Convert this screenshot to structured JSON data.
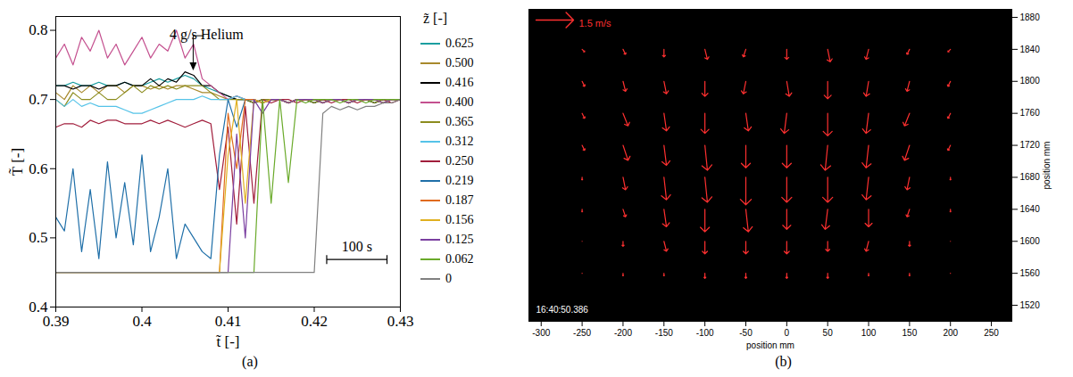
{
  "chart_data": [
    {
      "type": "line",
      "caption": "(a)",
      "x_label": "t̃ [-]",
      "y_label": "T̃ [-]",
      "legend_title": "z̃ [-]",
      "legend": "right",
      "xlim": [
        0.39,
        0.43
      ],
      "xticks": [
        0.39,
        0.4,
        0.41,
        0.42,
        0.43
      ],
      "ylim": [
        0.4,
        0.82
      ],
      "yticks": [
        0.4,
        0.5,
        0.6,
        0.7,
        0.8
      ],
      "x": [
        0.39,
        0.391,
        0.392,
        0.393,
        0.394,
        0.395,
        0.396,
        0.397,
        0.398,
        0.399,
        0.4,
        0.401,
        0.402,
        0.403,
        0.404,
        0.405,
        0.406,
        0.407,
        0.408,
        0.409,
        0.41,
        0.411,
        0.412,
        0.413,
        0.414,
        0.415,
        0.416,
        0.417,
        0.418,
        0.419,
        0.42,
        0.421,
        0.422,
        0.423,
        0.424,
        0.425,
        0.426,
        0.427,
        0.428,
        0.429,
        0.43
      ],
      "series": [
        {
          "name": "0.625",
          "color": "#1b9ea0",
          "values": [
            0.72,
            0.72,
            0.725,
            0.72,
            0.72,
            0.725,
            0.72,
            0.72,
            0.725,
            0.72,
            0.72,
            0.725,
            0.73,
            0.725,
            0.73,
            0.735,
            0.73,
            0.72,
            0.715,
            0.71,
            0.705,
            0.7,
            0.7,
            0.695,
            0.7,
            0.7,
            0.7,
            0.695,
            0.7,
            0.7,
            0.695,
            0.7,
            0.7,
            0.7,
            0.695,
            0.7,
            0.7,
            0.695,
            0.7,
            0.7,
            0.7
          ]
        },
        {
          "name": "0.500",
          "color": "#a8892c",
          "values": [
            0.71,
            0.7,
            0.72,
            0.71,
            0.72,
            0.71,
            0.72,
            0.72,
            0.71,
            0.72,
            0.72,
            0.715,
            0.72,
            0.715,
            0.72,
            0.72,
            0.715,
            0.71,
            0.71,
            0.705,
            0.7,
            0.705,
            0.7,
            0.7,
            0.695,
            0.7,
            0.7,
            0.695,
            0.7,
            0.7,
            0.7,
            0.695,
            0.7,
            0.7,
            0.695,
            0.7,
            0.7,
            0.7,
            0.695,
            0.7,
            0.7
          ]
        },
        {
          "name": "0.416",
          "color": "#000000",
          "values": [
            0.72,
            0.72,
            0.715,
            0.72,
            0.72,
            0.715,
            0.72,
            0.72,
            0.725,
            0.72,
            0.72,
            0.73,
            0.72,
            0.73,
            0.725,
            0.74,
            0.735,
            0.72,
            0.72,
            0.71,
            0.705,
            0.7,
            0.7,
            0.695,
            0.7,
            0.7,
            0.7,
            0.695,
            0.7,
            0.7,
            0.695,
            0.7,
            0.7,
            0.7,
            0.695,
            0.7,
            0.7,
            0.695,
            0.7,
            0.7,
            0.7
          ]
        },
        {
          "name": "0.400",
          "color": "#c4508f",
          "values": [
            0.76,
            0.78,
            0.75,
            0.79,
            0.77,
            0.8,
            0.76,
            0.78,
            0.75,
            0.77,
            0.79,
            0.76,
            0.78,
            0.77,
            0.8,
            0.76,
            0.78,
            0.73,
            0.72,
            0.71,
            0.7,
            0.705,
            0.7,
            0.7,
            0.695,
            0.7,
            0.7,
            0.695,
            0.7,
            0.7,
            0.7,
            0.695,
            0.7,
            0.7,
            0.695,
            0.7,
            0.7,
            0.7,
            0.695,
            0.7,
            0.7
          ]
        },
        {
          "name": "0.365",
          "color": "#8c8c1e",
          "values": [
            0.7,
            0.69,
            0.71,
            0.7,
            0.7,
            0.71,
            0.7,
            0.7,
            0.71,
            0.72,
            0.71,
            0.72,
            0.715,
            0.72,
            0.715,
            0.72,
            0.72,
            0.72,
            0.71,
            0.7,
            0.7,
            0.7,
            0.7,
            0.695,
            0.7,
            0.7,
            0.7,
            0.695,
            0.7,
            0.7,
            0.695,
            0.7,
            0.7,
            0.7,
            0.695,
            0.7,
            0.7,
            0.695,
            0.7,
            0.7,
            0.7
          ]
        },
        {
          "name": "0.312",
          "color": "#55c3e8",
          "values": [
            0.7,
            0.69,
            0.7,
            0.69,
            0.695,
            0.69,
            0.69,
            0.69,
            0.685,
            0.68,
            0.68,
            0.685,
            0.69,
            0.695,
            0.7,
            0.7,
            0.7,
            0.705,
            0.7,
            0.7,
            0.7,
            0.705,
            0.7,
            0.7,
            0.695,
            0.7,
            0.7,
            0.695,
            0.7,
            0.7,
            0.7,
            0.695,
            0.7,
            0.7,
            0.695,
            0.7,
            0.7,
            0.7,
            0.695,
            0.7,
            0.7
          ]
        },
        {
          "name": "0.250",
          "color": "#a11e3c",
          "values": [
            0.66,
            0.665,
            0.665,
            0.66,
            0.67,
            0.665,
            0.67,
            0.67,
            0.665,
            0.665,
            0.665,
            0.67,
            0.665,
            0.67,
            0.665,
            0.66,
            0.665,
            0.67,
            0.665,
            0.57,
            0.66,
            0.52,
            0.69,
            0.55,
            0.7,
            0.695,
            0.7,
            0.7,
            0.695,
            0.7,
            0.7,
            0.7,
            0.695,
            0.7,
            0.7,
            0.695,
            0.7,
            0.7,
            0.7,
            0.695,
            0.7
          ]
        },
        {
          "name": "0.219",
          "color": "#1f6fa8",
          "values": [
            0.53,
            0.51,
            0.6,
            0.48,
            0.57,
            0.47,
            0.61,
            0.5,
            0.58,
            0.49,
            0.62,
            0.48,
            0.53,
            0.6,
            0.47,
            0.52,
            0.5,
            0.48,
            0.47,
            0.62,
            0.7,
            0.66,
            0.7,
            0.7,
            0.695,
            0.7,
            0.7,
            0.695,
            0.7,
            0.7,
            0.7,
            0.695,
            0.7,
            0.7,
            0.695,
            0.7,
            0.7,
            0.7,
            0.695,
            0.7,
            0.7
          ]
        },
        {
          "name": "0.187",
          "color": "#e06a1e",
          "values": [
            0.45,
            0.45,
            0.45,
            0.45,
            0.45,
            0.45,
            0.45,
            0.45,
            0.45,
            0.45,
            0.45,
            0.45,
            0.45,
            0.45,
            0.45,
            0.45,
            0.45,
            0.45,
            0.45,
            0.45,
            0.68,
            0.6,
            0.7,
            0.7,
            0.695,
            0.7,
            0.7,
            0.695,
            0.7,
            0.7,
            0.7,
            0.695,
            0.7,
            0.7,
            0.695,
            0.7,
            0.7,
            0.7,
            0.695,
            0.7,
            0.7
          ]
        },
        {
          "name": "0.156",
          "color": "#e0b020",
          "values": [
            0.45,
            0.45,
            0.45,
            0.45,
            0.45,
            0.45,
            0.45,
            0.45,
            0.45,
            0.45,
            0.45,
            0.45,
            0.45,
            0.45,
            0.45,
            0.45,
            0.45,
            0.45,
            0.45,
            0.45,
            0.62,
            0.7,
            0.55,
            0.7,
            0.695,
            0.7,
            0.7,
            0.695,
            0.7,
            0.7,
            0.7,
            0.695,
            0.7,
            0.7,
            0.695,
            0.7,
            0.7,
            0.7,
            0.695,
            0.7,
            0.7
          ]
        },
        {
          "name": "0.125",
          "color": "#7a3fa0",
          "values": [
            0.45,
            0.45,
            0.45,
            0.45,
            0.45,
            0.45,
            0.45,
            0.45,
            0.45,
            0.45,
            0.45,
            0.45,
            0.45,
            0.45,
            0.45,
            0.45,
            0.45,
            0.45,
            0.45,
            0.45,
            0.45,
            0.65,
            0.5,
            0.7,
            0.68,
            0.7,
            0.7,
            0.695,
            0.7,
            0.7,
            0.7,
            0.695,
            0.7,
            0.7,
            0.695,
            0.7,
            0.7,
            0.7,
            0.695,
            0.7,
            0.7
          ]
        },
        {
          "name": "0.062",
          "color": "#6aaa2a",
          "values": [
            0.45,
            0.45,
            0.45,
            0.45,
            0.45,
            0.45,
            0.45,
            0.45,
            0.45,
            0.45,
            0.45,
            0.45,
            0.45,
            0.45,
            0.45,
            0.45,
            0.45,
            0.45,
            0.45,
            0.45,
            0.45,
            0.45,
            0.45,
            0.45,
            0.7,
            0.55,
            0.7,
            0.58,
            0.7,
            0.695,
            0.7,
            0.7,
            0.7,
            0.695,
            0.7,
            0.7,
            0.695,
            0.7,
            0.7,
            0.7,
            0.7
          ]
        },
        {
          "name": "0",
          "color": "#808080",
          "values": [
            0.45,
            0.45,
            0.45,
            0.45,
            0.45,
            0.45,
            0.45,
            0.45,
            0.45,
            0.45,
            0.45,
            0.45,
            0.45,
            0.45,
            0.45,
            0.45,
            0.45,
            0.45,
            0.45,
            0.45,
            0.45,
            0.45,
            0.45,
            0.45,
            0.45,
            0.45,
            0.45,
            0.45,
            0.45,
            0.45,
            0.45,
            0.68,
            0.69,
            0.685,
            0.69,
            0.685,
            0.69,
            0.69,
            0.695,
            0.695,
            0.7
          ]
        }
      ],
      "annotations": [
        {
          "text": "4 g/s Helium",
          "x": 0.406,
          "y": 0.74
        }
      ],
      "scale_bar": {
        "text": "100 s",
        "x": [
          0.4215,
          0.4285
        ],
        "y": 0.468
      }
    },
    {
      "type": "vector",
      "caption": "(b)",
      "x_label": "position mm",
      "y_label": "position mm",
      "xlim": [
        -315,
        275
      ],
      "xticks": [
        -300,
        -250,
        -200,
        -150,
        -100,
        -50,
        0,
        50,
        100,
        150,
        200,
        250
      ],
      "ylim": [
        1500,
        1890
      ],
      "yticks": [
        1520,
        1560,
        1600,
        1640,
        1680,
        1720,
        1760,
        1800,
        1840,
        1880
      ],
      "color": "#ff3030",
      "reference_vector": {
        "value": 1.5,
        "label": "1.5 m/s",
        "color": "#ff3030"
      },
      "timestamp": "16:40:50.386",
      "vectors": {
        "x": [
          -250,
          -200,
          -150,
          -100,
          -50,
          0,
          50,
          100,
          150,
          200
        ],
        "y": [
          1560,
          1600,
          1640,
          1680,
          1720,
          1760,
          1800,
          1840
        ],
        "u": [
          [
            0,
            0,
            0,
            0,
            0,
            0,
            0,
            0,
            0,
            0
          ],
          [
            0,
            0,
            0.1,
            0,
            0,
            0,
            0,
            -0.1,
            0,
            0
          ],
          [
            0,
            0.1,
            0.1,
            0,
            0.1,
            0,
            -0.1,
            0,
            -0.1,
            0
          ],
          [
            0,
            0.1,
            0.1,
            0.1,
            0,
            0,
            0,
            -0.1,
            -0.1,
            0
          ],
          [
            0.1,
            0.2,
            0.1,
            0.1,
            0,
            0,
            -0.1,
            -0.1,
            -0.2,
            -0.1
          ],
          [
            0.1,
            0.2,
            0.1,
            0,
            0.1,
            -0.1,
            0,
            -0.1,
            -0.2,
            -0.1
          ],
          [
            0.1,
            0.1,
            0.1,
            0,
            -0.1,
            0.1,
            0,
            -0.1,
            -0.1,
            -0.1
          ],
          [
            0.1,
            0.1,
            0,
            0.1,
            -0.1,
            0,
            0.1,
            -0.1,
            -0.1,
            -0.1
          ]
        ],
        "v": [
          [
            0,
            -0.1,
            -0.1,
            -0.2,
            -0.2,
            -0.2,
            -0.2,
            -0.1,
            -0.1,
            0
          ],
          [
            0,
            -0.2,
            -0.4,
            -0.5,
            -0.5,
            -0.5,
            -0.4,
            -0.4,
            -0.2,
            0
          ],
          [
            -0.1,
            -0.3,
            -0.7,
            -0.9,
            -0.9,
            -0.8,
            -0.8,
            -0.7,
            -0.3,
            -0.1
          ],
          [
            -0.1,
            -0.5,
            -0.9,
            -1.0,
            -1.1,
            -1.0,
            -1.0,
            -0.9,
            -0.5,
            -0.1
          ],
          [
            -0.2,
            -0.6,
            -0.8,
            -1.0,
            -0.9,
            -0.9,
            -1.0,
            -0.9,
            -0.6,
            -0.2
          ],
          [
            -0.2,
            -0.5,
            -0.7,
            -0.8,
            -0.7,
            -0.8,
            -0.9,
            -0.8,
            -0.5,
            -0.2
          ],
          [
            -0.2,
            -0.4,
            -0.5,
            -0.6,
            -0.5,
            -0.6,
            -0.7,
            -0.6,
            -0.4,
            -0.2
          ],
          [
            -0.1,
            -0.2,
            -0.3,
            -0.4,
            -0.3,
            -0.4,
            -0.5,
            -0.4,
            -0.2,
            -0.1
          ]
        ]
      }
    }
  ]
}
